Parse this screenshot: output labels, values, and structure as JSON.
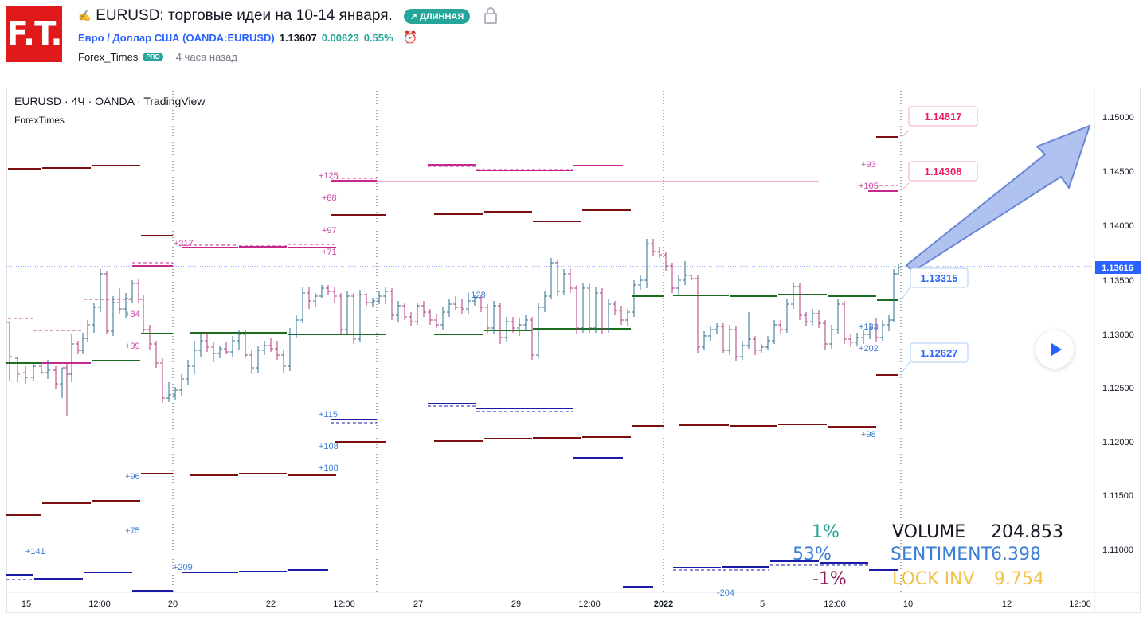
{
  "header": {
    "title": "EURUSD: торговые идеи на 10-14 января.",
    "badge": "↗ ДЛИННАЯ",
    "symbol": "Евро / Доллар США (OANDA:EURUSD)",
    "price": "1.13607",
    "change": "0.00623",
    "change_pct": "0.55%",
    "author": "Forex_Times",
    "pro": "PRO",
    "time_ago": "4 часа назад"
  },
  "logo": {
    "text": "F.T."
  },
  "chart": {
    "label": "EURUSD · 4Ч · OANDA · TradingView",
    "sublabel": "ForexTimes",
    "y_ticks": [
      "1.15000",
      "1.14500",
      "1.14000",
      "1.13500",
      "1.13000",
      "1.12500",
      "1.12000",
      "1.11500",
      "1.11000"
    ],
    "current_price": "1.13616",
    "x_ticks": [
      "15",
      "12:00",
      "20",
      "22",
      "12:00",
      "27",
      "29",
      "12:00",
      "2022",
      "5",
      "12:00",
      "10",
      "12",
      "12:00"
    ],
    "level_labels": [
      {
        "text": "1.14817",
        "color": "#e91e63"
      },
      {
        "text": "1.14308",
        "color": "#e91e63"
      },
      {
        "text": "1.13315",
        "color": "#2962ff"
      },
      {
        "text": "1.12627",
        "color": "#2962ff"
      }
    ],
    "annotations_magenta": [
      "+125",
      "+88",
      "+97",
      "+217",
      "+71",
      "+84",
      "+99",
      "+93",
      "+105"
    ],
    "annotations_blue": [
      "+128",
      "+133",
      "+202",
      "+115",
      "+108",
      "+108",
      "+96",
      "+75",
      "+141",
      "+209",
      "+98",
      "-204"
    ],
    "stats": {
      "pct1": "1%",
      "pct2": "53%",
      "pct3": "-1%",
      "volume_label": "VOLUME",
      "volume_value": "204.853",
      "sentiment_label": "SENTIMENT",
      "sentiment_value": "6.398",
      "lock_label": "LOCK INV",
      "lock_value": "9.754"
    }
  },
  "colors": {
    "bull": "#2b6c8c",
    "bear": "#b03a78",
    "green_level": "#1b6e20",
    "maroon_level": "#7a1010",
    "blue_level": "#1a1aa8",
    "magenta_level": "#c4288c",
    "arrow": "#8fa8e8"
  }
}
